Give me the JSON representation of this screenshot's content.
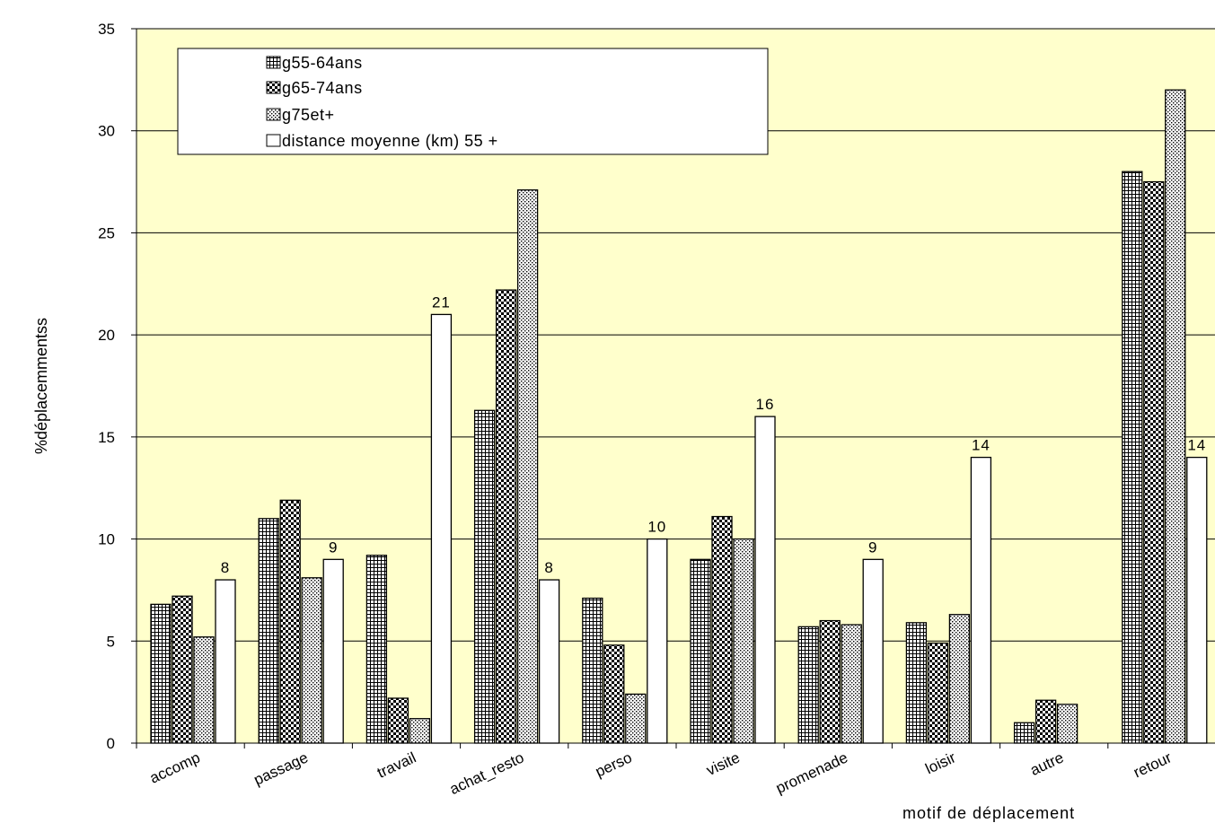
{
  "chart_data": {
    "type": "bar",
    "title": "",
    "xlabel": "motif de déplacement",
    "ylabel": "%déplacemmentss",
    "ylim": [
      0,
      35
    ],
    "yticks": [
      0,
      5,
      10,
      15,
      20,
      25,
      30,
      35
    ],
    "grid": true,
    "legend_position": "top-left",
    "categories": [
      "accomp",
      "passage",
      "travail",
      "achat_resto",
      "perso",
      "visite",
      "promenade",
      "loisir",
      "autre",
      "retour"
    ],
    "series": [
      {
        "name": "g55-64ans",
        "pattern": "grid",
        "values": [
          6.8,
          11.0,
          9.2,
          16.3,
          7.1,
          9.0,
          5.7,
          5.9,
          1.0,
          28.0
        ]
      },
      {
        "name": "g65-74ans",
        "pattern": "checker",
        "values": [
          7.2,
          11.9,
          2.2,
          22.2,
          4.8,
          11.1,
          6.0,
          4.9,
          2.1,
          27.5
        ]
      },
      {
        "name": "g75et+",
        "pattern": "dots",
        "values": [
          5.2,
          8.1,
          1.2,
          27.1,
          2.4,
          10.0,
          5.8,
          6.3,
          1.9,
          32.0
        ]
      },
      {
        "name": "distance moyenne (km) 55 +",
        "pattern": "none",
        "values": [
          8,
          9,
          21,
          8,
          10,
          16,
          9,
          14,
          null,
          14
        ]
      }
    ],
    "data_labels": [
      "8",
      "9",
      "21",
      "8",
      "10",
      "16",
      "9",
      "14",
      "",
      "14"
    ],
    "colors": {
      "plot_background": "#ffffcc",
      "bar_outline": "#000000",
      "bar_fill": "#ffffff"
    }
  }
}
